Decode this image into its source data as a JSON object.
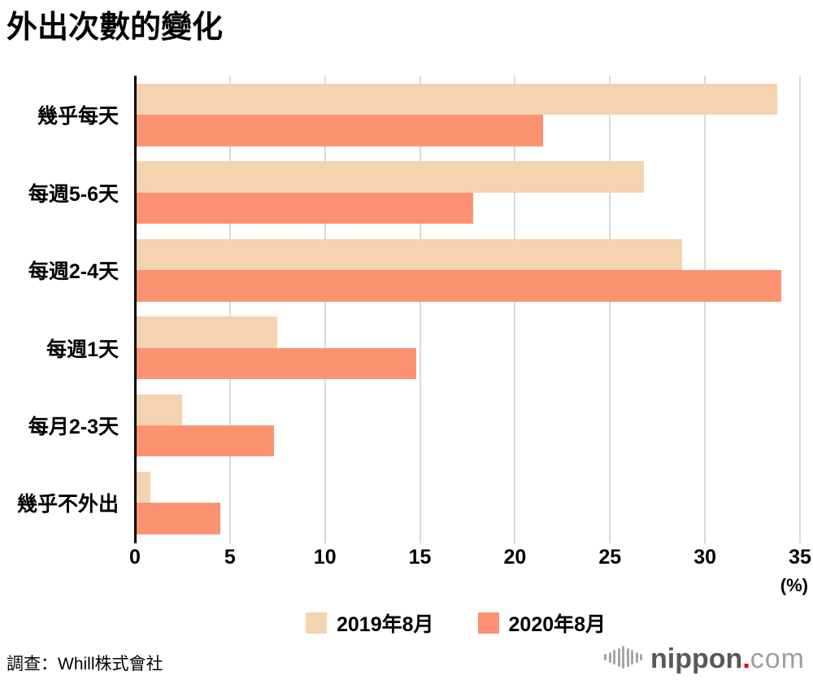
{
  "title": "外出次數的變化",
  "chart_data": {
    "type": "bar",
    "orientation": "horizontal",
    "title": "外出次數的變化",
    "categories": [
      "幾乎每天",
      "每週5-6天",
      "每週2-4天",
      "每週1天",
      "每月2-3天",
      "幾乎不外出"
    ],
    "series": [
      {
        "name": "2019年8月",
        "color": "#f5d3b0",
        "values": [
          33.8,
          26.8,
          28.8,
          7.5,
          2.5,
          0.8
        ]
      },
      {
        "name": "2020年8月",
        "color": "#fc9272",
        "values": [
          21.5,
          17.8,
          34.0,
          14.8,
          7.3,
          4.5
        ]
      }
    ],
    "x_ticks": [
      0,
      5,
      10,
      15,
      20,
      25,
      30,
      35
    ],
    "xlim": [
      0,
      35
    ],
    "x_unit": "(%)",
    "grid": "vertical-gridlines",
    "legend_position": "bottom"
  },
  "footer": {
    "source": "調查：Whill株式會社"
  },
  "logo": {
    "name": "nippon",
    "dot": ".",
    "tld": "com",
    "dot_color": "#e60012"
  },
  "colors": {
    "series_2019": "#f5d3b0",
    "series_2020": "#fc9272",
    "gridline": "#d9d9d9",
    "axis": "#000000"
  }
}
